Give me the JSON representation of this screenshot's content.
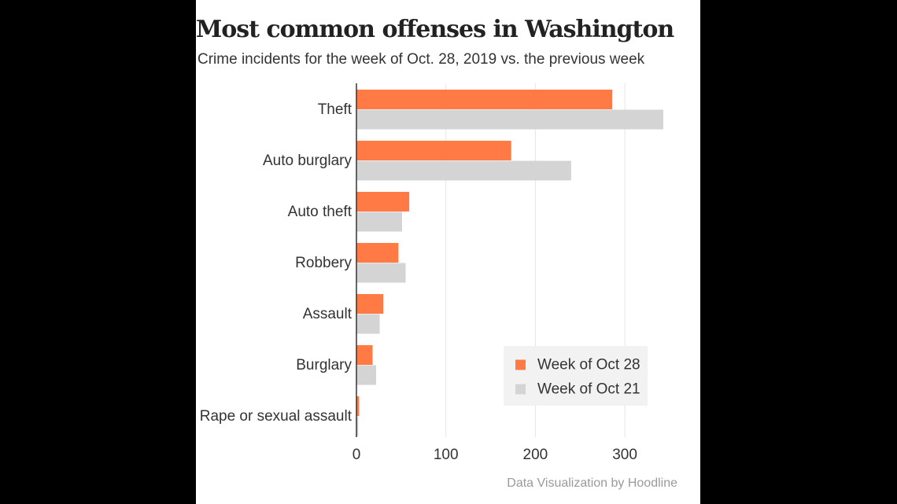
{
  "title": "Most common offenses in Washington",
  "subtitle": "Crime incidents for the week of Oct. 28, 2019 vs. the previous week",
  "credit": "Data Visualization by Hoodline",
  "colors": {
    "current": "#ff7a45",
    "previous": "#d4d4d4",
    "legend_bg": "#f2f2f2",
    "grid": "#e6e6e6",
    "axis": "#333333"
  },
  "chart_data": {
    "type": "bar",
    "orientation": "horizontal",
    "categories": [
      "Theft",
      "Auto burglary",
      "Auto theft",
      "Robbery",
      "Assault",
      "Burglary",
      "Rape or sexual assault"
    ],
    "series": [
      {
        "name": "Week of Oct 28",
        "values": [
          286,
          173,
          59,
          47,
          30,
          18,
          3
        ]
      },
      {
        "name": "Week of Oct 21",
        "values": [
          343,
          240,
          51,
          55,
          26,
          22,
          2
        ]
      }
    ],
    "xlim": [
      0,
      350
    ],
    "xticks": [
      0,
      100,
      200,
      300
    ],
    "title": "Most common offenses in Washington",
    "subtitle": "Crime incidents for the week of Oct. 28, 2019 vs. the previous week",
    "grid": true,
    "legend_position": "bottom-right"
  }
}
